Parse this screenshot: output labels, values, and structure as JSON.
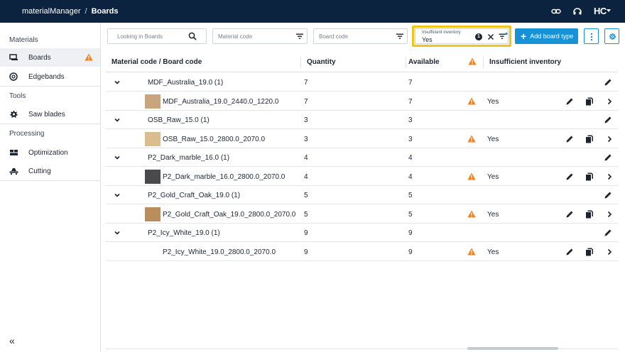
{
  "header": {
    "app_name": "materialManager",
    "separator": "/",
    "breadcrumb": "Boards",
    "logo_text": "HC"
  },
  "sidebar": {
    "sections": [
      {
        "title": "Materials",
        "items": [
          {
            "label": "Boards",
            "icon": "boards-icon",
            "active": true,
            "warning": true
          },
          {
            "label": "Edgebands",
            "icon": "edgeband-icon"
          }
        ]
      },
      {
        "title": "Tools",
        "items": [
          {
            "label": "Saw blades",
            "icon": "saw-blade-icon"
          }
        ]
      },
      {
        "title": "Processing",
        "items": [
          {
            "label": "Optimization",
            "icon": "optimization-icon"
          },
          {
            "label": "Cutting",
            "icon": "cutting-icon"
          }
        ]
      }
    ],
    "collapse_glyph": "«"
  },
  "toolbar": {
    "search_placeholder": "Looking in Boards",
    "material_code_placeholder": "Material code",
    "board_code_placeholder": "Board code",
    "insufficient_filter": {
      "label": "Insufficient inventory",
      "value": "Yes",
      "count": "1"
    },
    "add_button_label": "Add board type"
  },
  "table": {
    "columns": {
      "code": "Material code / Board code",
      "quantity": "Quantity",
      "available": "Available",
      "insufficient": "Insufficient inventory"
    },
    "groups": [
      {
        "material": "MDF_Australia_19.0 (1)",
        "quantity": "7",
        "available": "7",
        "board": {
          "code": "MDF_Australia_19.0_2440.0_1220.0",
          "quantity": "7",
          "available": "7",
          "insufficient": "Yes",
          "thumb_color": "#c9a57e"
        }
      },
      {
        "material": "OSB_Raw_15.0 (1)",
        "quantity": "3",
        "available": "3",
        "board": {
          "code": "OSB_Raw_15.0_2800.0_2070.0",
          "quantity": "3",
          "available": "3",
          "insufficient": "Yes",
          "thumb_color": "#d9bd8f"
        }
      },
      {
        "material": "P2_Dark_marble_16.0 (1)",
        "quantity": "4",
        "available": "4",
        "board": {
          "code": "P2_Dark_marble_16.0_2800.0_2070.0",
          "quantity": "4",
          "available": "4",
          "insufficient": "Yes",
          "thumb_color": "#4a4a4c"
        }
      },
      {
        "material": "P2_Gold_Craft_Oak_19.0 (1)",
        "quantity": "5",
        "available": "5",
        "board": {
          "code": "P2_Gold_Craft_Oak_19.0_2800.0_2070.0",
          "quantity": "5",
          "available": "5",
          "insufficient": "Yes",
          "thumb_color": "#b98e5c"
        }
      },
      {
        "material": "P2_Icy_White_19.0 (1)",
        "quantity": "9",
        "available": "9",
        "board": {
          "code": "P2_Icy_White_19.0_2800.0_2070.0",
          "quantity": "9",
          "available": "9",
          "insufficient": "Yes",
          "thumb_color": ""
        }
      }
    ]
  },
  "colors": {
    "header_bg": "#0c2340",
    "accent": "#1892d6",
    "warning": "#f0821e",
    "highlight": "#f0c419"
  }
}
